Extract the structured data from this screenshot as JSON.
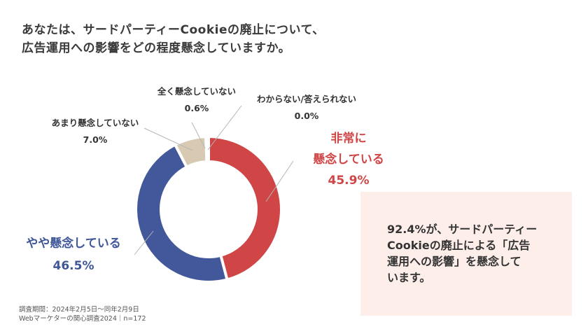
{
  "header": {
    "title": "あなたは、サードパーティーCookieの廃止について、\n広告運用への影響をどの程度懸念していますか。"
  },
  "labels": {
    "very_concerned": {
      "name": "非常に\n懸念している",
      "name_line1": "非常に",
      "name_line2": "懸念している",
      "value": "45.9%"
    },
    "somewhat_concerned": {
      "name": "やや懸念している",
      "value": "46.5%"
    },
    "not_very_concerned": {
      "name": "あまり懸念していない",
      "value": "7.0%"
    },
    "not_at_all": {
      "name": "全く懸念していない",
      "value": "0.6%"
    },
    "dont_know": {
      "name": "わからない/答えられない",
      "value": "0.0%"
    }
  },
  "callout": {
    "text": "92.4%が、サードパーティー\nCookieの廃止による「広告\n運用への影響」を懸念して\nいます。"
  },
  "footnote": {
    "text": "調査期間：2024年2月5日～同年2月9日\nWebマーケターの関心調査2024｜n=172"
  },
  "colors": {
    "very_concerned": "#d04545",
    "somewhat_concerned": "#42589b",
    "not_very_concerned": "#d8cab2",
    "not_at_all": "#e0d6c4",
    "callout_bg": "#fdeeea"
  },
  "chart_data": {
    "type": "pie",
    "title": "あなたは、サードパーティーCookieの廃止について、広告運用への影響をどの程度懸念していますか。",
    "donut": true,
    "categories": [
      "非常に懸念している",
      "やや懸念している",
      "あまり懸念していない",
      "全く懸念していない",
      "わからない/答えられない"
    ],
    "values": [
      45.9,
      46.5,
      7.0,
      0.6,
      0.0
    ],
    "unit": "%",
    "colors": [
      "#d04545",
      "#42589b",
      "#d8cab2",
      "#e0d6c4",
      "#cccccc"
    ],
    "start_angle": "12 o'clock, clockwise",
    "n": 172,
    "annotation": "92.4%が、サードパーティーCookieの廃止による「広告運用への影響」を懸念しています。"
  }
}
